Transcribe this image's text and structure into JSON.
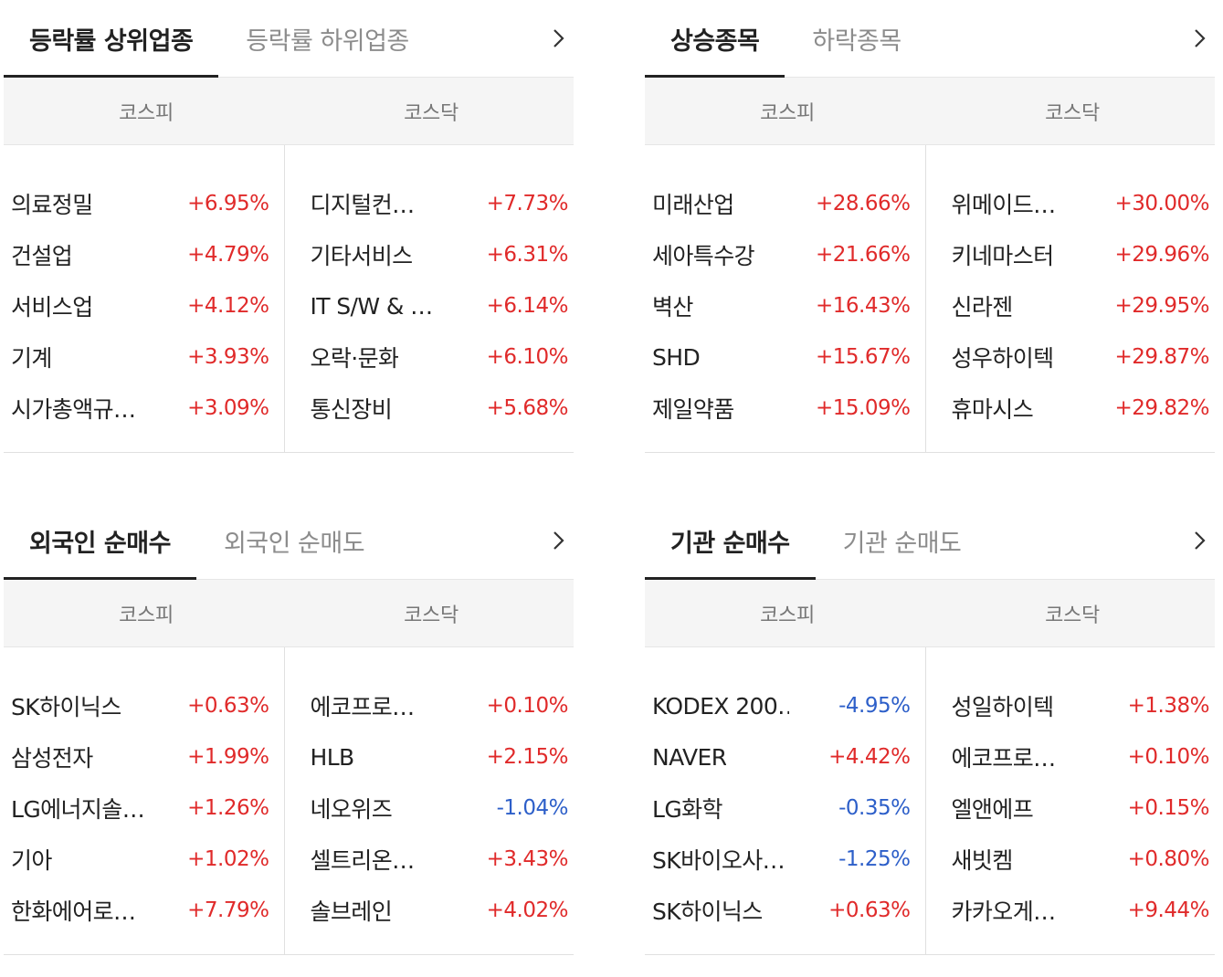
{
  "panels": [
    {
      "tabs": [
        "등락률 상위업종",
        "등락률 하위업종"
      ],
      "markets": [
        "코스피",
        "코스닥"
      ],
      "left": [
        {
          "name": "의료정밀",
          "rate": "+6.95%",
          "dir": "up"
        },
        {
          "name": "건설업",
          "rate": "+4.79%",
          "dir": "up"
        },
        {
          "name": "서비스업",
          "rate": "+4.12%",
          "dir": "up"
        },
        {
          "name": "기계",
          "rate": "+3.93%",
          "dir": "up"
        },
        {
          "name": "시가총액규…",
          "rate": "+3.09%",
          "dir": "up"
        }
      ],
      "right": [
        {
          "name": "디지털컨…",
          "rate": "+7.73%",
          "dir": "up"
        },
        {
          "name": "기타서비스",
          "rate": "+6.31%",
          "dir": "up"
        },
        {
          "name": "IT S/W & …",
          "rate": "+6.14%",
          "dir": "up"
        },
        {
          "name": "오락·문화",
          "rate": "+6.10%",
          "dir": "up"
        },
        {
          "name": "통신장비",
          "rate": "+5.68%",
          "dir": "up"
        }
      ]
    },
    {
      "tabs": [
        "상승종목",
        "하락종목"
      ],
      "markets": [
        "코스피",
        "코스닥"
      ],
      "left": [
        {
          "name": "미래산업",
          "rate": "+28.66%",
          "dir": "up"
        },
        {
          "name": "세아특수강",
          "rate": "+21.66%",
          "dir": "up"
        },
        {
          "name": "벽산",
          "rate": "+16.43%",
          "dir": "up"
        },
        {
          "name": "SHD",
          "rate": "+15.67%",
          "dir": "up"
        },
        {
          "name": "제일약품",
          "rate": "+15.09%",
          "dir": "up"
        }
      ],
      "right": [
        {
          "name": "위메이드…",
          "rate": "+30.00%",
          "dir": "up"
        },
        {
          "name": "키네마스터",
          "rate": "+29.96%",
          "dir": "up"
        },
        {
          "name": "신라젠",
          "rate": "+29.95%",
          "dir": "up"
        },
        {
          "name": "성우하이텍",
          "rate": "+29.87%",
          "dir": "up"
        },
        {
          "name": "휴마시스",
          "rate": "+29.82%",
          "dir": "up"
        }
      ]
    },
    {
      "tabs": [
        "외국인 순매수",
        "외국인 순매도"
      ],
      "markets": [
        "코스피",
        "코스닥"
      ],
      "left": [
        {
          "name": "SK하이닉스",
          "rate": "+0.63%",
          "dir": "up"
        },
        {
          "name": "삼성전자",
          "rate": "+1.99%",
          "dir": "up"
        },
        {
          "name": "LG에너지솔…",
          "rate": "+1.26%",
          "dir": "up"
        },
        {
          "name": "기아",
          "rate": "+1.02%",
          "dir": "up"
        },
        {
          "name": "한화에어로…",
          "rate": "+7.79%",
          "dir": "up"
        }
      ],
      "right": [
        {
          "name": "에코프로…",
          "rate": "+0.10%",
          "dir": "up"
        },
        {
          "name": "HLB",
          "rate": "+2.15%",
          "dir": "up"
        },
        {
          "name": "네오위즈",
          "rate": "-1.04%",
          "dir": "down"
        },
        {
          "name": "셀트리온…",
          "rate": "+3.43%",
          "dir": "up"
        },
        {
          "name": "솔브레인",
          "rate": "+4.02%",
          "dir": "up"
        }
      ]
    },
    {
      "tabs": [
        "기관 순매수",
        "기관 순매도"
      ],
      "markets": [
        "코스피",
        "코스닥"
      ],
      "left": [
        {
          "name": "KODEX 200…",
          "rate": "-4.95%",
          "dir": "down"
        },
        {
          "name": "NAVER",
          "rate": "+4.42%",
          "dir": "up"
        },
        {
          "name": "LG화학",
          "rate": "-0.35%",
          "dir": "down"
        },
        {
          "name": "SK바이오사…",
          "rate": "-1.25%",
          "dir": "down"
        },
        {
          "name": "SK하이닉스",
          "rate": "+0.63%",
          "dir": "up"
        }
      ],
      "right": [
        {
          "name": "성일하이텍",
          "rate": "+1.38%",
          "dir": "up"
        },
        {
          "name": "에코프로…",
          "rate": "+0.10%",
          "dir": "up"
        },
        {
          "name": "엘앤에프",
          "rate": "+0.15%",
          "dir": "up"
        },
        {
          "name": "새빗켐",
          "rate": "+0.80%",
          "dir": "up"
        },
        {
          "name": "카카오게…",
          "rate": "+9.44%",
          "dir": "up"
        }
      ]
    }
  ],
  "icons": {
    "more": "chevron-right-icon"
  },
  "colors": {
    "up": "#e02a2a",
    "down": "#2d5fc9"
  }
}
